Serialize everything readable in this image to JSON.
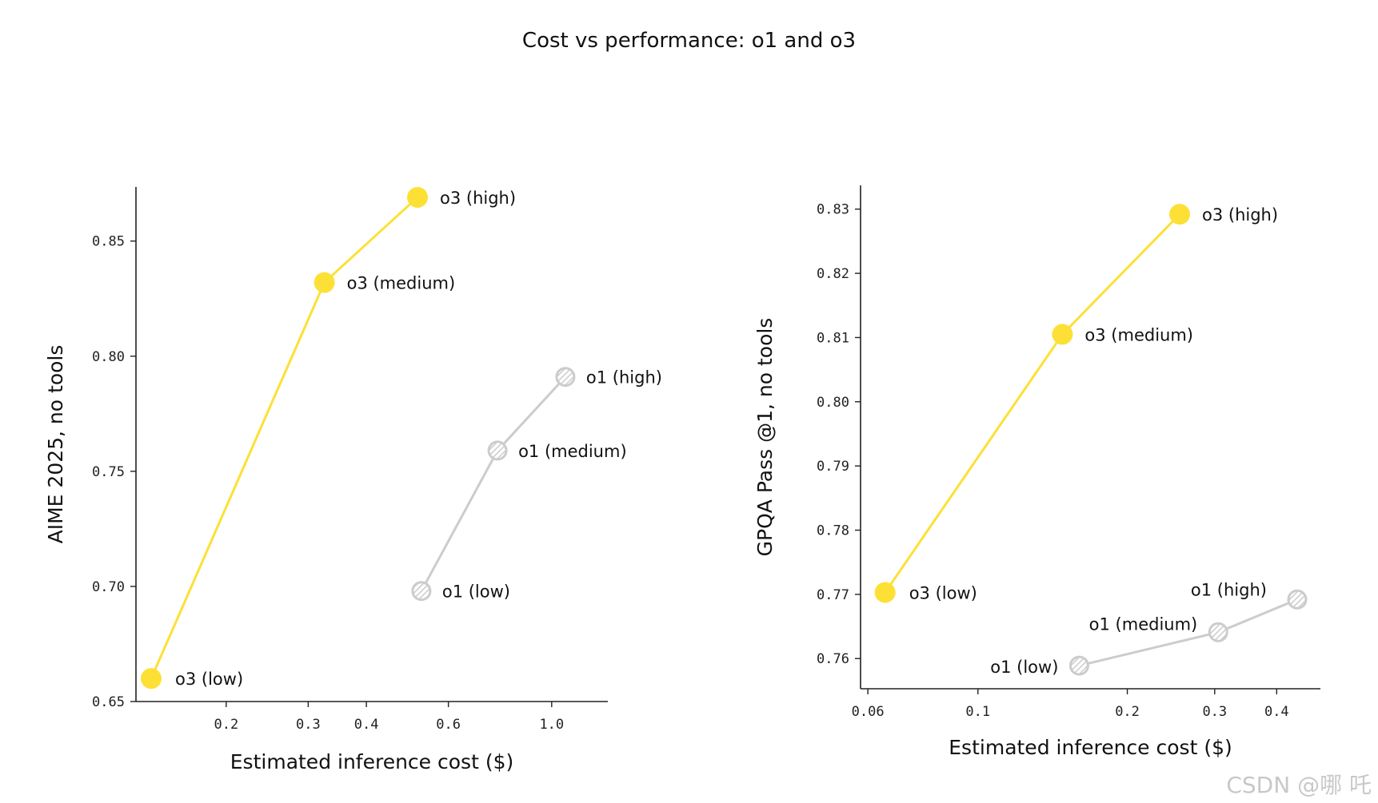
{
  "title": "Cost vs performance: o1 and o3",
  "watermark": "CSDN @哪 吒",
  "colors": {
    "o3": "#fde036",
    "o1": "#cccccc",
    "axis": "#222222"
  },
  "chart_data": [
    {
      "type": "line",
      "xscale": "log",
      "xlabel": "Estimated inference cost ($)",
      "ylabel": "AIME 2025, no tools",
      "xlim": [
        0.128,
        1.32
      ],
      "ylim": [
        0.65,
        0.8735
      ],
      "xticks": [
        0.2,
        0.3,
        0.4,
        0.6,
        1.0
      ],
      "xtick_labels": [
        "0.2",
        "0.3",
        "0.4",
        "0.6",
        "1.0"
      ],
      "yticks": [
        0.65,
        0.7,
        0.75,
        0.8,
        0.85
      ],
      "ytick_labels": [
        "0.65",
        "0.70",
        "0.75",
        "0.80",
        "0.85"
      ],
      "series": [
        {
          "name": "o3",
          "style": "solid",
          "points": [
            {
              "label": "o3 (low)",
              "x": 0.138,
              "y": 0.66
            },
            {
              "label": "o3 (medium)",
              "x": 0.325,
              "y": 0.832
            },
            {
              "label": "o3 (high)",
              "x": 0.515,
              "y": 0.869
            }
          ]
        },
        {
          "name": "o1",
          "style": "hatched",
          "points": [
            {
              "label": "o1 (low)",
              "x": 0.525,
              "y": 0.698
            },
            {
              "label": "o1 (medium)",
              "x": 0.765,
              "y": 0.759
            },
            {
              "label": "o1 (high)",
              "x": 1.07,
              "y": 0.791
            }
          ]
        }
      ]
    },
    {
      "type": "line",
      "xscale": "log",
      "xlabel": "Estimated inference cost ($)",
      "ylabel": "GPQA Pass @1, no tools",
      "xlim": [
        0.058,
        0.49
      ],
      "ylim": [
        0.7553,
        0.8337
      ],
      "xticks": [
        0.06,
        0.1,
        0.2,
        0.3,
        0.4
      ],
      "xtick_labels": [
        "0.06",
        "0.1",
        "0.2",
        "0.3",
        "0.4"
      ],
      "yticks": [
        0.76,
        0.77,
        0.78,
        0.79,
        0.8,
        0.81,
        0.82,
        0.83
      ],
      "ytick_labels": [
        "0.76",
        "0.77",
        "0.78",
        "0.79",
        "0.80",
        "0.81",
        "0.82",
        "0.83"
      ],
      "series": [
        {
          "name": "o3",
          "style": "solid",
          "points": [
            {
              "label": "o3 (low)",
              "x": 0.065,
              "y": 0.7703
            },
            {
              "label": "o3 (medium)",
              "x": 0.148,
              "y": 0.8105
            },
            {
              "label": "o3 (high)",
              "x": 0.255,
              "y": 0.8292
            }
          ]
        },
        {
          "name": "o1",
          "style": "hatched",
          "points": [
            {
              "label": "o1 (low)",
              "x": 0.16,
              "y": 0.7589
            },
            {
              "label": "o1 (medium)",
              "x": 0.305,
              "y": 0.7641
            },
            {
              "label": "o1 (high)",
              "x": 0.44,
              "y": 0.7692
            }
          ]
        }
      ]
    }
  ]
}
